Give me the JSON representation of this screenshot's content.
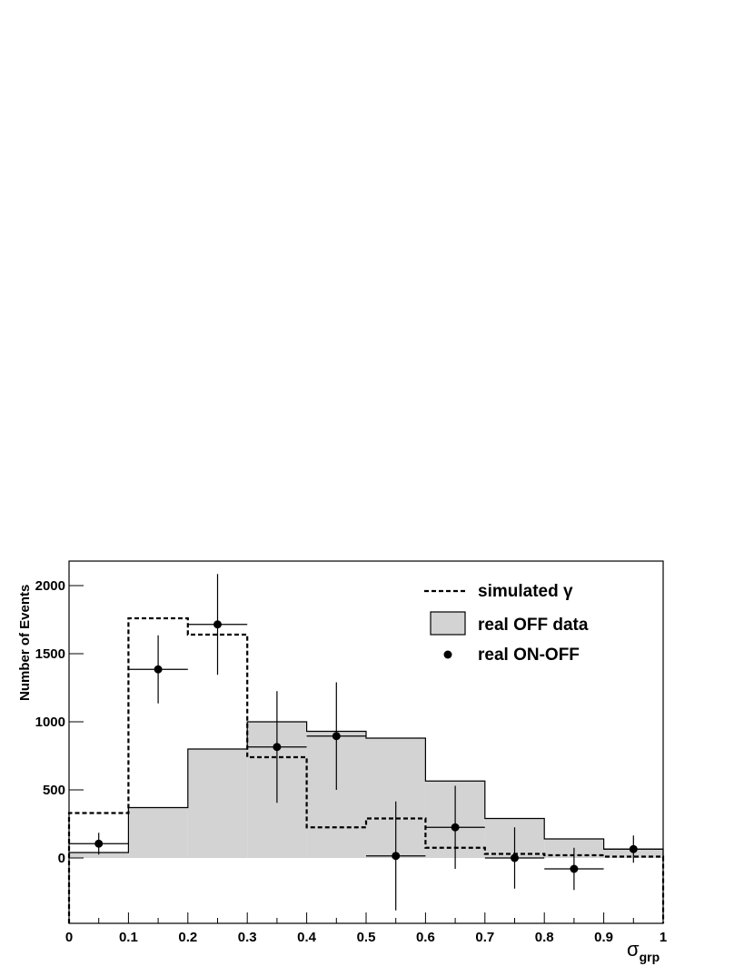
{
  "chart_data": {
    "type": "histogram",
    "xlabel": "σ",
    "xlabel_sub": "grp",
    "ylabel": "Number of Events",
    "xlim": [
      0,
      1
    ],
    "ylim": [
      -480,
      2180
    ],
    "x_ticks": [
      "0",
      "0.1",
      "0.2",
      "0.3",
      "0.4",
      "0.5",
      "0.6",
      "0.7",
      "0.8",
      "0.9",
      "1"
    ],
    "y_ticks": [
      "0",
      "500",
      "1000",
      "1500",
      "2000"
    ],
    "bin_edges": [
      0,
      0.1,
      0.2,
      0.3,
      0.4,
      0.5,
      0.6,
      0.7,
      0.8,
      0.9,
      1.0
    ],
    "legend_position": "top-right",
    "series": [
      {
        "name": "simulated γ",
        "style": "dashed-step",
        "color": "#000000",
        "values": [
          330,
          1760,
          1640,
          740,
          225,
          290,
          75,
          30,
          20,
          10
        ]
      },
      {
        "name": "real OFF data",
        "style": "filled-step",
        "color": "#d3d3d3",
        "values": [
          40,
          370,
          800,
          1000,
          930,
          880,
          565,
          290,
          140,
          65
        ]
      },
      {
        "name": "real ON-OFF",
        "style": "points-with-errors",
        "color": "#000000",
        "x": [
          0.05,
          0.15,
          0.25,
          0.35,
          0.45,
          0.55,
          0.65,
          0.75,
          0.85,
          0.95
        ],
        "values": [
          105,
          1385,
          1715,
          815,
          895,
          15,
          225,
          0,
          -80,
          65
        ],
        "y_err": [
          80,
          250,
          370,
          410,
          395,
          400,
          305,
          225,
          155,
          100
        ]
      }
    ]
  }
}
